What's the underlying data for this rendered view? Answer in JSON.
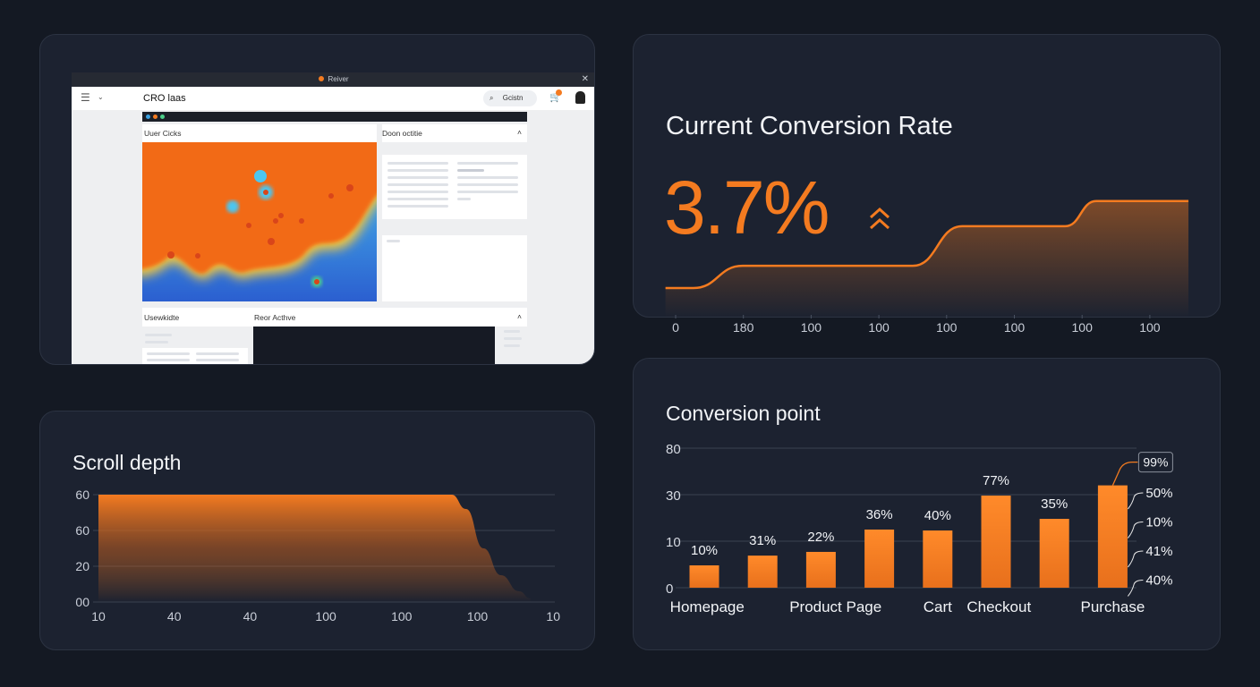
{
  "colors": {
    "accent": "#f47b20",
    "background": "#141923",
    "card": "#1c2230",
    "heat_hot": "#f26a12",
    "heat_cold": "#2e6fd6"
  },
  "mockup": {
    "window_title": "Reiver",
    "app_title": "CRO laas",
    "search_label": "Gcistn",
    "icons": [
      "menu-icon",
      "chevron-down-icon",
      "search-icon",
      "cart-icon",
      "avatar-icon",
      "close-icon"
    ],
    "heatmap_title": "Uuer Cicks",
    "side_panel_title": "Doon octitie",
    "bottom_left_title": "Usewkidte",
    "bottom_right_title": "Reor Acthve"
  },
  "conversion_rate": {
    "title": "Current Conversion Rate",
    "value": "3.7%",
    "trend_icon": "double-chevron-up-icon",
    "chart_data": {
      "type": "area",
      "x_tick_labels": [
        "0",
        "180",
        "100",
        "100",
        "100",
        "100",
        "100",
        "100"
      ],
      "points": [
        [
          -0.15,
          1.0
        ],
        [
          0.26,
          1.0
        ],
        [
          0.99,
          1.69
        ],
        [
          3.5,
          1.69
        ],
        [
          4.23,
          2.92
        ],
        [
          5.75,
          2.92
        ],
        [
          6.21,
          3.7
        ],
        [
          7.57,
          3.7
        ]
      ],
      "ylim": [
        0,
        4.2
      ],
      "grid": false
    }
  },
  "scroll_depth": {
    "title": "Scroll depth",
    "chart_data": {
      "type": "area",
      "y_tick_labels": [
        "00",
        "20",
        "60",
        "60"
      ],
      "x_tick_labels": [
        "10",
        "40",
        "40",
        "100",
        "100",
        "100",
        "10"
      ],
      "points": [
        [
          0,
          3
        ],
        [
          4.66,
          3
        ],
        [
          4.85,
          2.6
        ],
        [
          5.08,
          1.5
        ],
        [
          5.31,
          0.75
        ],
        [
          5.55,
          0.3
        ],
        [
          5.7,
          0.1
        ]
      ],
      "grid": true
    }
  },
  "conversion_point": {
    "title": "Conversion point",
    "chart_data": {
      "type": "bar",
      "y_tick_labels": [
        "0",
        "10",
        "30",
        "80"
      ],
      "category_labels": [
        {
          "label": "Homepage",
          "at": 0.05
        },
        {
          "label": "Product Page",
          "at": 2.25
        },
        {
          "label": "Cart",
          "at": 4
        },
        {
          "label": "Checkout",
          "at": 5.05
        },
        {
          "label": "Purchase",
          "at": 7
        }
      ],
      "values": [
        4.8,
        6.9,
        7.7,
        15,
        14.6,
        29.6,
        19.6,
        40
      ],
      "value_labels": [
        "10%",
        "31%",
        "22%",
        "36%",
        "40%",
        "77%",
        "35%",
        ""
      ],
      "callout": "99%",
      "side_labels": [
        "50%",
        "10%",
        "41%",
        "40%"
      ],
      "grid": true
    }
  }
}
